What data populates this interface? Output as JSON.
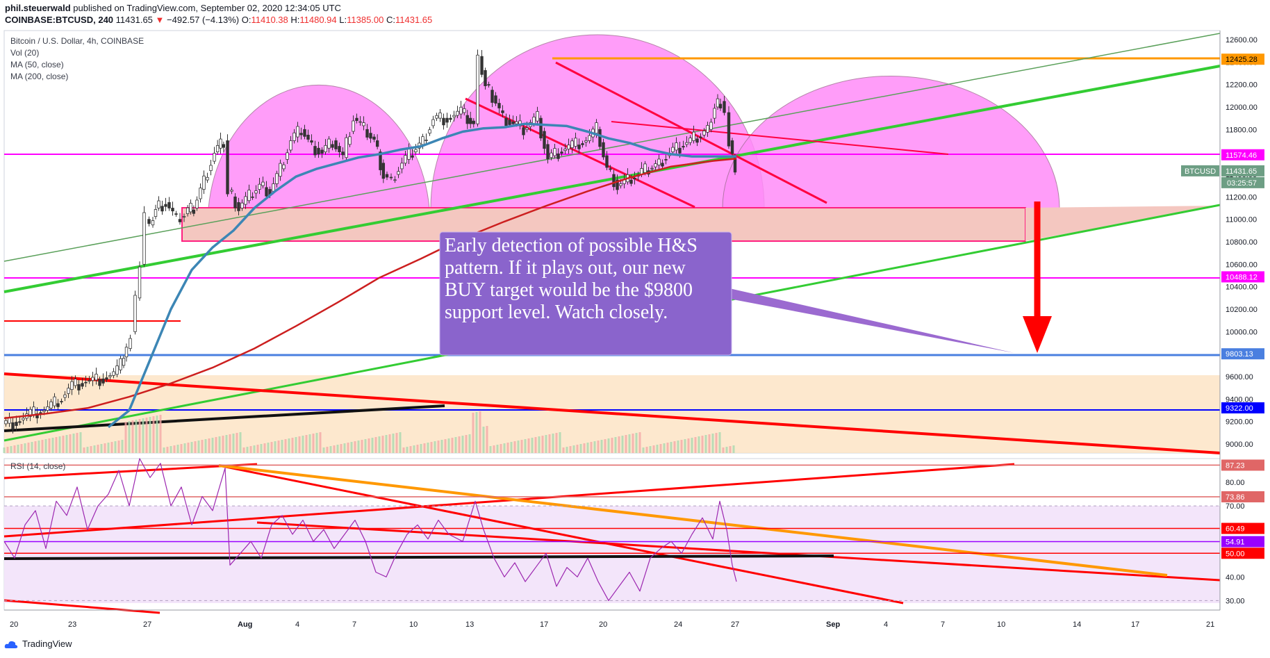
{
  "header": {
    "author": "phil.steuerwald",
    "published_text": "published on TradingView.com, September 02, 2020 12:34:05 UTC",
    "symbol_line": "COINBASE:BTCUSD, 240",
    "last": "11431.65",
    "change": "−492.57 (−4.13%)",
    "o_label": "O:",
    "o": "11410.38",
    "h_label": "H:",
    "h": "11480.94",
    "l_label": "L:",
    "l": "11385.00",
    "c_label": "C:",
    "c": "11431.65"
  },
  "legend": {
    "title": "Bitcoin / U.S. Dollar, 4h, COINBASE",
    "vol": "Vol (20)",
    "ma50": "MA (50, close)",
    "ma200": "MA (200, close)",
    "rsi": "RSI (14, close)"
  },
  "annotation": {
    "text": "Early detection of possible H&S pattern. If it plays out, our new BUY target would be the $9800 support level. Watch closely."
  },
  "footer": {
    "brand": "TradingView"
  },
  "colors": {
    "magenta": "#ff00ff",
    "red": "#ff0000",
    "green": "#33cc33",
    "orange": "#ff9800",
    "blue_support": "#4a7fe0",
    "navy": "#0000ff",
    "annotation_bg": "#8a64cc",
    "rsi_line": "#9c27b0"
  },
  "chart_data": [
    {
      "type": "candlestick",
      "title": "Bitcoin / U.S. Dollar, 4h, COINBASE",
      "y_ticks": [
        9000,
        9200,
        9400,
        9600,
        9800,
        10000,
        10200,
        10400,
        10600,
        10800,
        11000,
        11200,
        11400,
        11600,
        11800,
        12000,
        12200,
        12400,
        12600
      ],
      "y_tick_labels": [
        "9000.00",
        "9200.00",
        "9400.00",
        "9600.00",
        "9800.00",
        "10000.00",
        "10200.00",
        "10400.00",
        "10600.00",
        "10800.00",
        "11000.00",
        "11200.00",
        "11400.00",
        "11600.00",
        "11800.00",
        "12000.00",
        "12200.00",
        "12400.00",
        "12600.00"
      ],
      "x_tick_labels": [
        "20",
        "23",
        "27",
        "Aug",
        "4",
        "7",
        "10",
        "13",
        "17",
        "20",
        "24",
        "27",
        "Sep",
        "4",
        "7",
        "10",
        "14",
        "17",
        "21"
      ],
      "price_labels": [
        {
          "value": 12425.28,
          "label": "12425.28",
          "color": "#ff9800"
        },
        {
          "value": 11574.46,
          "label": "11574.46",
          "color": "#ff00ff"
        },
        {
          "value": 11431.65,
          "label": "11431.65",
          "name": "BTCUSD",
          "color": "#6d9e84"
        },
        {
          "value": 10488.12,
          "label": "10488.12",
          "color": "#ff00ff"
        },
        {
          "value": 9803.13,
          "label": "9803.13",
          "color": "#4a7fe0"
        },
        {
          "value": 9322.0,
          "label": "9322.00",
          "color": "#0000ff"
        }
      ],
      "countdown": "03:25:57",
      "close_path": [
        [
          0,
          9180
        ],
        [
          20,
          9200
        ],
        [
          40,
          9260
        ],
        [
          60,
          9300
        ],
        [
          80,
          9380
        ],
        [
          100,
          9520
        ],
        [
          120,
          9560
        ],
        [
          140,
          9580
        ],
        [
          160,
          9620
        ],
        [
          170,
          9700
        ],
        [
          178,
          9850
        ],
        [
          185,
          10000
        ],
        [
          192,
          10300
        ],
        [
          198,
          10600
        ],
        [
          205,
          11000
        ],
        [
          212,
          10950
        ],
        [
          220,
          11100
        ],
        [
          235,
          11150
        ],
        [
          250,
          11000
        ],
        [
          262,
          11050
        ],
        [
          275,
          11100
        ],
        [
          290,
          11350
        ],
        [
          305,
          11600
        ],
        [
          318,
          11700
        ],
        [
          325,
          11250
        ],
        [
          340,
          11100
        ],
        [
          355,
          11200
        ],
        [
          370,
          11300
        ],
        [
          385,
          11250
        ],
        [
          400,
          11450
        ],
        [
          415,
          11700
        ],
        [
          430,
          11800
        ],
        [
          445,
          11650
        ],
        [
          460,
          11600
        ],
        [
          475,
          11700
        ],
        [
          490,
          11550
        ],
        [
          505,
          11900
        ],
        [
          520,
          11800
        ],
        [
          535,
          11700
        ],
        [
          548,
          11400
        ],
        [
          560,
          11350
        ],
        [
          575,
          11500
        ],
        [
          590,
          11600
        ],
        [
          605,
          11700
        ],
        [
          620,
          11900
        ],
        [
          640,
          11900
        ],
        [
          660,
          11950
        ],
        [
          678,
          11850
        ],
        [
          685,
          12450
        ],
        [
          695,
          12200
        ],
        [
          705,
          12100
        ],
        [
          720,
          11900
        ],
        [
          735,
          11850
        ],
        [
          750,
          11800
        ],
        [
          770,
          11900
        ],
        [
          785,
          11550
        ],
        [
          800,
          11600
        ],
        [
          820,
          11650
        ],
        [
          840,
          11700
        ],
        [
          855,
          11800
        ],
        [
          870,
          11450
        ],
        [
          885,
          11300
        ],
        [
          900,
          11350
        ],
        [
          915,
          11400
        ],
        [
          930,
          11450
        ],
        [
          945,
          11500
        ],
        [
          960,
          11600
        ],
        [
          975,
          11650
        ],
        [
          990,
          11700
        ],
        [
          1005,
          11750
        ],
        [
          1015,
          11800
        ],
        [
          1025,
          12000
        ],
        [
          1033,
          12050
        ],
        [
          1040,
          11950
        ],
        [
          1046,
          11700
        ],
        [
          1050,
          11550
        ],
        [
          1054,
          11432
        ]
      ],
      "ma50_path": [
        [
          150,
          9150
        ],
        [
          180,
          9300
        ],
        [
          210,
          9750
        ],
        [
          240,
          10200
        ],
        [
          270,
          10550
        ],
        [
          300,
          10750
        ],
        [
          330,
          10900
        ],
        [
          360,
          11100
        ],
        [
          390,
          11250
        ],
        [
          420,
          11380
        ],
        [
          450,
          11450
        ],
        [
          480,
          11500
        ],
        [
          510,
          11550
        ],
        [
          540,
          11580
        ],
        [
          570,
          11620
        ],
        [
          600,
          11650
        ],
        [
          630,
          11720
        ],
        [
          660,
          11780
        ],
        [
          690,
          11810
        ],
        [
          720,
          11820
        ],
        [
          750,
          11850
        ],
        [
          780,
          11840
        ],
        [
          810,
          11830
        ],
        [
          840,
          11780
        ],
        [
          870,
          11720
        ],
        [
          900,
          11680
        ],
        [
          930,
          11620
        ],
        [
          960,
          11580
        ],
        [
          990,
          11560
        ],
        [
          1020,
          11560
        ],
        [
          1054,
          11560
        ]
      ],
      "ma200_path": [
        [
          0,
          9230
        ],
        [
          60,
          9270
        ],
        [
          120,
          9320
        ],
        [
          180,
          9420
        ],
        [
          240,
          9540
        ],
        [
          300,
          9680
        ],
        [
          360,
          9850
        ],
        [
          420,
          10050
        ],
        [
          480,
          10260
        ],
        [
          540,
          10480
        ],
        [
          600,
          10650
        ],
        [
          660,
          10830
        ],
        [
          720,
          10980
        ],
        [
          780,
          11120
        ],
        [
          840,
          11250
        ],
        [
          900,
          11370
        ],
        [
          960,
          11470
        ],
        [
          1020,
          11520
        ],
        [
          1054,
          11540
        ]
      ],
      "y_range": [
        8920,
        12680
      ],
      "x_range": [
        0,
        1500
      ]
    },
    {
      "type": "line",
      "title": "RSI (14, close)",
      "y_ticks": [
        30,
        40,
        50,
        60,
        70,
        80
      ],
      "y_tick_labels": [
        "30.00",
        "40.00",
        "50.00",
        "60.00",
        "70.00",
        "80.00"
      ],
      "level_labels": [
        {
          "value": 87.23,
          "label": "87.23",
          "color": "#e06666"
        },
        {
          "value": 73.86,
          "label": "73.86",
          "color": "#e06666"
        },
        {
          "value": 60.49,
          "label": "60.49",
          "color": "#ff0000"
        },
        {
          "value": 54.91,
          "label": "54.91",
          "color": "#9900ff"
        },
        {
          "value": 50.0,
          "label": "50.00",
          "color": "#ff0000"
        }
      ],
      "y_range": [
        26,
        90
      ],
      "rsi_path": [
        [
          0,
          55
        ],
        [
          15,
          48
        ],
        [
          30,
          62
        ],
        [
          45,
          68
        ],
        [
          60,
          52
        ],
        [
          75,
          72
        ],
        [
          90,
          66
        ],
        [
          105,
          78
        ],
        [
          120,
          60
        ],
        [
          135,
          70
        ],
        [
          150,
          75
        ],
        [
          165,
          85
        ],
        [
          180,
          70
        ],
        [
          195,
          90
        ],
        [
          210,
          82
        ],
        [
          225,
          88
        ],
        [
          240,
          70
        ],
        [
          255,
          78
        ],
        [
          270,
          62
        ],
        [
          285,
          74
        ],
        [
          300,
          68
        ],
        [
          318,
          86
        ],
        [
          325,
          45
        ],
        [
          340,
          50
        ],
        [
          355,
          55
        ],
        [
          370,
          48
        ],
        [
          385,
          62
        ],
        [
          400,
          66
        ],
        [
          415,
          58
        ],
        [
          430,
          64
        ],
        [
          445,
          55
        ],
        [
          460,
          60
        ],
        [
          475,
          52
        ],
        [
          490,
          58
        ],
        [
          505,
          64
        ],
        [
          520,
          55
        ],
        [
          535,
          42
        ],
        [
          550,
          40
        ],
        [
          565,
          50
        ],
        [
          580,
          58
        ],
        [
          595,
          62
        ],
        [
          610,
          56
        ],
        [
          625,
          64
        ],
        [
          640,
          58
        ],
        [
          660,
          55
        ],
        [
          678,
          72
        ],
        [
          690,
          60
        ],
        [
          705,
          48
        ],
        [
          720,
          40
        ],
        [
          735,
          46
        ],
        [
          750,
          38
        ],
        [
          765,
          44
        ],
        [
          780,
          50
        ],
        [
          795,
          36
        ],
        [
          810,
          44
        ],
        [
          825,
          40
        ],
        [
          840,
          48
        ],
        [
          855,
          38
        ],
        [
          870,
          30
        ],
        [
          885,
          36
        ],
        [
          900,
          42
        ],
        [
          915,
          34
        ],
        [
          930,
          48
        ],
        [
          945,
          52
        ],
        [
          960,
          55
        ],
        [
          975,
          50
        ],
        [
          990,
          58
        ],
        [
          1005,
          65
        ],
        [
          1020,
          56
        ],
        [
          1030,
          72
        ],
        [
          1040,
          60
        ],
        [
          1048,
          45
        ],
        [
          1054,
          38
        ]
      ]
    }
  ]
}
